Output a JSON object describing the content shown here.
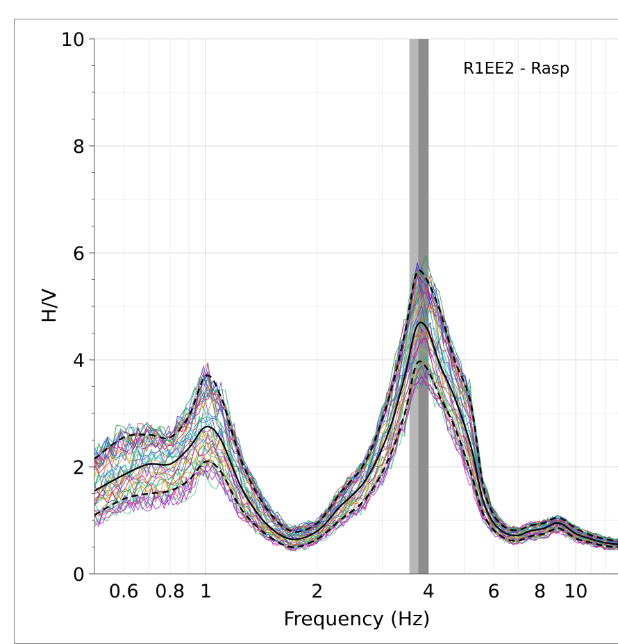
{
  "chart_data": {
    "type": "line",
    "title": "R1EE2 - Rasp",
    "xlabel": "Frequency (Hz)",
    "ylabel": "H/V",
    "xscale": "log",
    "xlim": [
      0.5,
      13
    ],
    "ylim": [
      0,
      10
    ],
    "x_ticks": [
      {
        "value": 0.6,
        "label": "0.6"
      },
      {
        "value": 0.8,
        "label": "0.8"
      },
      {
        "value": 1,
        "label": "1"
      },
      {
        "value": 2,
        "label": "2"
      },
      {
        "value": 4,
        "label": "4"
      },
      {
        "value": 6,
        "label": "6"
      },
      {
        "value": 8,
        "label": "8"
      },
      {
        "value": 10,
        "label": "10"
      }
    ],
    "y_ticks": [
      {
        "value": 0,
        "label": "0"
      },
      {
        "value": 2,
        "label": "2"
      },
      {
        "value": 4,
        "label": "4"
      },
      {
        "value": 6,
        "label": "6"
      },
      {
        "value": 8,
        "label": "8"
      },
      {
        "value": 10,
        "label": "10"
      }
    ],
    "grid": true,
    "peak_band": {
      "f0": 3.75,
      "inner": [
        3.55,
        3.75
      ],
      "outer": [
        3.75,
        4.0
      ]
    },
    "colors": {
      "band_light": "#b8b8b8",
      "band_dark": "#8e8e8e",
      "mean": "#000000",
      "window_palette": [
        "#e0008a",
        "#9b1fd6",
        "#1a9e3a",
        "#16a8c4",
        "#e07a10",
        "#3a56e8",
        "#c4b81a",
        "#2fcf6e",
        "#b82ca6",
        "#6a2fd0",
        "#22b7b0",
        "#d64a2a"
      ]
    },
    "series": [
      {
        "x": [
          0.5,
          0.6,
          0.7,
          0.8,
          0.9,
          1.0,
          1.1,
          1.25,
          1.45,
          1.7,
          2.0,
          2.3,
          2.7,
          3.1,
          3.45,
          3.7,
          3.95,
          4.3,
          4.7,
          5.2,
          5.6,
          6.0,
          6.5,
          7.0,
          7.5,
          8.2,
          9.0,
          10.0,
          11.0,
          12.0,
          13.0
        ],
        "y": [
          1.55,
          1.85,
          2.05,
          2.05,
          2.35,
          2.75,
          2.5,
          1.6,
          0.95,
          0.65,
          0.8,
          1.25,
          1.75,
          2.6,
          3.7,
          4.6,
          4.6,
          3.9,
          3.3,
          2.4,
          1.4,
          0.95,
          0.75,
          0.72,
          0.8,
          0.85,
          0.95,
          0.75,
          0.65,
          0.58,
          0.55
        ]
      },
      {
        "x": [
          0.5,
          0.6,
          0.7,
          0.8,
          0.9,
          1.0,
          1.1,
          1.25,
          1.45,
          1.7,
          2.0,
          2.3,
          2.7,
          3.1,
          3.45,
          3.7,
          3.95,
          4.3,
          4.7,
          5.2,
          5.6,
          6.0,
          6.5,
          7.0,
          7.5,
          8.2,
          9.0,
          10.0,
          11.0,
          12.0,
          13.0
        ],
        "y": [
          2.15,
          2.55,
          2.6,
          2.55,
          2.95,
          3.7,
          3.3,
          2.1,
          1.25,
          0.8,
          0.95,
          1.5,
          2.1,
          3.2,
          4.5,
          5.6,
          5.5,
          4.9,
          4.0,
          3.2,
          1.7,
          1.1,
          0.85,
          0.82,
          0.9,
          0.95,
          1.05,
          0.85,
          0.72,
          0.65,
          0.6
        ]
      },
      {
        "x": [
          0.5,
          0.6,
          0.7,
          0.8,
          0.9,
          1.0,
          1.1,
          1.25,
          1.45,
          1.7,
          2.0,
          2.3,
          2.7,
          3.1,
          3.45,
          3.7,
          3.95,
          4.3,
          4.7,
          5.2,
          5.6,
          6.0,
          6.5,
          7.0,
          7.5,
          8.2,
          9.0,
          10.0,
          11.0,
          12.0,
          13.0
        ],
        "y": [
          1.1,
          1.4,
          1.5,
          1.55,
          1.75,
          2.1,
          1.9,
          1.2,
          0.75,
          0.5,
          0.65,
          1.0,
          1.4,
          2.1,
          3.0,
          3.9,
          3.85,
          3.3,
          2.75,
          1.9,
          1.15,
          0.82,
          0.65,
          0.62,
          0.7,
          0.75,
          0.85,
          0.66,
          0.58,
          0.52,
          0.5
        ]
      }
    ]
  }
}
